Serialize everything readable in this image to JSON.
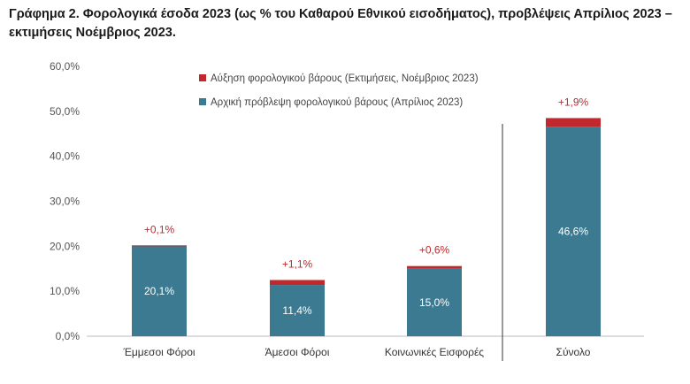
{
  "title": "Γράφημα 2. Φορολογικά έσοδα 2023 (ως % του Καθαρού Εθνικού εισοδήματος), προβλέψεις Απρίλιος 2023 – εκτιμήσεις Νοέμβριος 2023.",
  "colors": {
    "base": "#3b7a91",
    "increase": "#c0282d",
    "axis": "#bbbbbb",
    "divider": "#333333"
  },
  "chart_data": {
    "type": "bar",
    "stacked": true,
    "categories": [
      "Έμμεσοι Φόροι",
      "Άμεσοι Φόροι",
      "Κοινωνικές Εισφορές",
      "Σύνολο"
    ],
    "series": [
      {
        "name": "Αρχική πρόβλεψη φορολογικού βάρους (Απρίλιος 2023)",
        "values": [
          20.1,
          11.4,
          15.0,
          46.6
        ],
        "labels": [
          "20,1%",
          "11,4%",
          "15,0%",
          "46,6%"
        ]
      },
      {
        "name": "Αύξηση φορολογικού βάρους (Εκτιμήσεις, Νοέμβριος 2023)",
        "values": [
          0.1,
          1.1,
          0.6,
          1.9
        ],
        "labels": [
          "+0,1%",
          "+1,1%",
          "+0,6%",
          "+1,9%"
        ]
      }
    ],
    "ylim": [
      0,
      60
    ],
    "yticks": [
      0,
      10,
      20,
      30,
      40,
      50,
      60
    ],
    "ytick_labels": [
      "0,0%",
      "10,0%",
      "20,0%",
      "30,0%",
      "40,0%",
      "50,0%",
      "60,0%"
    ],
    "legend_position": "top-center",
    "grid": false
  }
}
